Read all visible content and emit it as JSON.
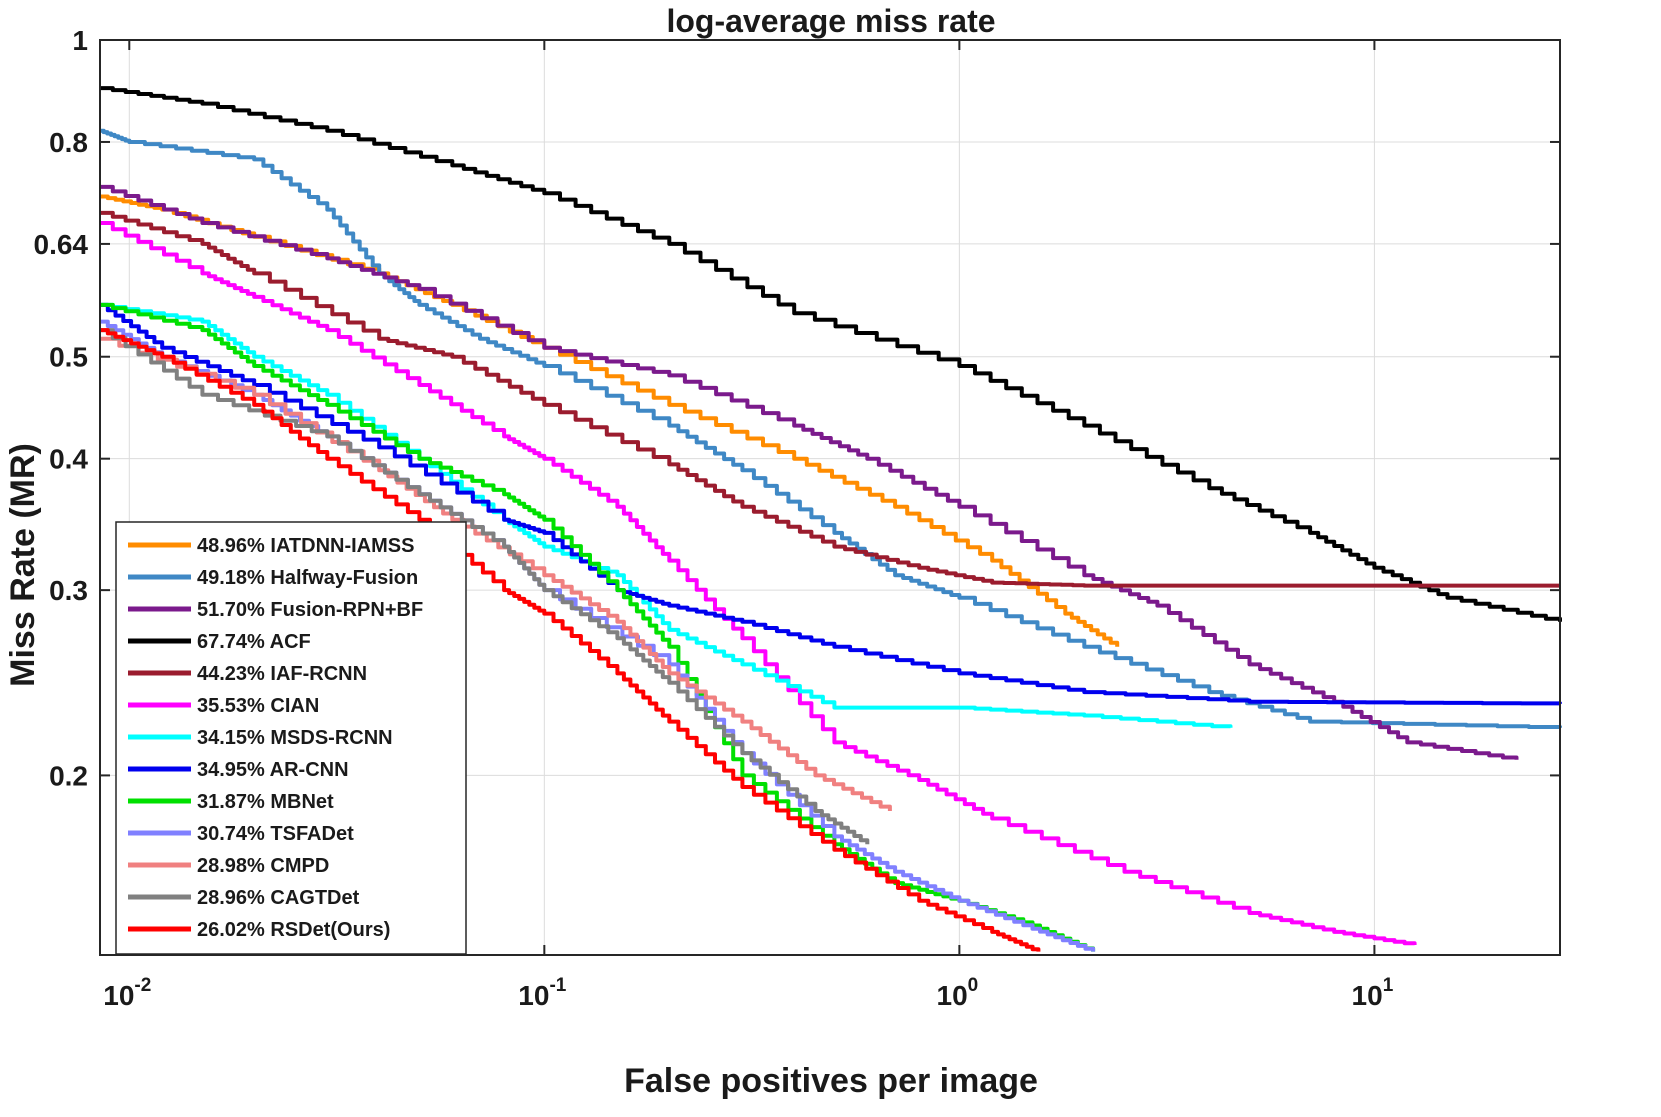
{
  "chart_data": {
    "type": "line",
    "title": "log-average miss rate",
    "xlabel": "False positives per image",
    "ylabel": "Miss Rate (MR)",
    "xscale": "log",
    "yscale": "log",
    "xlim": [
      0.0085,
      28
    ],
    "ylim": [
      0.135,
      1.0
    ],
    "x_ticks": [
      {
        "base": "10",
        "exp": "-2"
      },
      {
        "base": "10",
        "exp": "-1"
      },
      {
        "base": "10",
        "exp": "0"
      },
      {
        "base": "10",
        "exp": "1"
      }
    ],
    "x_tick_values": [
      0.01,
      0.1,
      1,
      10
    ],
    "y_ticks": [
      "1",
      "0.8",
      "0.64",
      "0.5",
      "0.4",
      "0.3",
      "0.2"
    ],
    "y_tick_values": [
      1,
      0.8,
      0.64,
      0.5,
      0.4,
      0.3,
      0.2
    ],
    "grid": true,
    "legend_position": "bottom-left",
    "series": [
      {
        "name": "48.96% IATDNN-IAMSS",
        "color": "#ff8c00",
        "points": [
          [
            0.0085,
            0.71
          ],
          [
            0.012,
            0.69
          ],
          [
            0.02,
            0.65
          ],
          [
            0.04,
            0.6
          ],
          [
            0.06,
            0.56
          ],
          [
            0.1,
            0.51
          ],
          [
            0.2,
            0.45
          ],
          [
            0.4,
            0.4
          ],
          [
            0.7,
            0.36
          ],
          [
            1.2,
            0.32
          ],
          [
            1.8,
            0.285
          ],
          [
            2.4,
            0.265
          ]
        ]
      },
      {
        "name": "49.18% Halfway-Fusion",
        "color": "#3f88c5",
        "points": [
          [
            0.0085,
            0.82
          ],
          [
            0.01,
            0.8
          ],
          [
            0.02,
            0.77
          ],
          [
            0.03,
            0.69
          ],
          [
            0.04,
            0.6
          ],
          [
            0.05,
            0.56
          ],
          [
            0.07,
            0.52
          ],
          [
            0.1,
            0.49
          ],
          [
            0.2,
            0.43
          ],
          [
            0.3,
            0.39
          ],
          [
            0.5,
            0.34
          ],
          [
            0.7,
            0.31
          ],
          [
            1.0,
            0.295
          ],
          [
            2.0,
            0.265
          ],
          [
            4.0,
            0.24
          ],
          [
            7.0,
            0.225
          ],
          [
            28,
            0.222
          ]
        ]
      },
      {
        "name": "51.70% Fusion-RPN+BF",
        "color": "#7b1a8c",
        "points": [
          [
            0.0085,
            0.725
          ],
          [
            0.015,
            0.67
          ],
          [
            0.03,
            0.62
          ],
          [
            0.05,
            0.58
          ],
          [
            0.1,
            0.51
          ],
          [
            0.2,
            0.48
          ],
          [
            0.4,
            0.43
          ],
          [
            0.6,
            0.4
          ],
          [
            1.0,
            0.36
          ],
          [
            2.0,
            0.31
          ],
          [
            3.0,
            0.29
          ],
          [
            5.0,
            0.255
          ],
          [
            8.0,
            0.235
          ],
          [
            12,
            0.215
          ],
          [
            22,
            0.207
          ]
        ]
      },
      {
        "name": "67.74% ACF",
        "color": "#000000",
        "points": [
          [
            0.0085,
            0.9
          ],
          [
            0.015,
            0.87
          ],
          [
            0.03,
            0.82
          ],
          [
            0.06,
            0.76
          ],
          [
            0.1,
            0.715
          ],
          [
            0.2,
            0.64
          ],
          [
            0.4,
            0.55
          ],
          [
            1.0,
            0.49
          ],
          [
            2.0,
            0.43
          ],
          [
            4.0,
            0.375
          ],
          [
            7.0,
            0.34
          ],
          [
            10.0,
            0.315
          ],
          [
            15,
            0.295
          ],
          [
            28,
            0.28
          ]
        ]
      },
      {
        "name": "44.23% IAF-RCNN",
        "color": "#9b1c2e",
        "points": [
          [
            0.0085,
            0.685
          ],
          [
            0.015,
            0.64
          ],
          [
            0.02,
            0.6
          ],
          [
            0.04,
            0.52
          ],
          [
            0.06,
            0.5
          ],
          [
            0.1,
            0.45
          ],
          [
            0.2,
            0.395
          ],
          [
            0.3,
            0.36
          ],
          [
            0.5,
            0.33
          ],
          [
            0.8,
            0.315
          ],
          [
            1.2,
            0.305
          ],
          [
            2.0,
            0.303
          ],
          [
            28,
            0.303
          ]
        ]
      },
      {
        "name": "35.53% CIAN",
        "color": "#ff00ff",
        "points": [
          [
            0.0085,
            0.67
          ],
          [
            0.015,
            0.6
          ],
          [
            0.02,
            0.57
          ],
          [
            0.03,
            0.53
          ],
          [
            0.05,
            0.47
          ],
          [
            0.08,
            0.42
          ],
          [
            0.1,
            0.4
          ],
          [
            0.15,
            0.36
          ],
          [
            0.2,
            0.32
          ],
          [
            0.3,
            0.27
          ],
          [
            0.5,
            0.215
          ],
          [
            0.8,
            0.198
          ],
          [
            1.2,
            0.182
          ],
          [
            2.5,
            0.162
          ],
          [
            5.0,
            0.148
          ],
          [
            8.0,
            0.142
          ],
          [
            12.5,
            0.138
          ]
        ]
      },
      {
        "name": "34.15% MSDS-RCNN",
        "color": "#00ffff",
        "points": [
          [
            0.0085,
            0.56
          ],
          [
            0.015,
            0.54
          ],
          [
            0.02,
            0.5
          ],
          [
            0.03,
            0.46
          ],
          [
            0.05,
            0.4
          ],
          [
            0.08,
            0.35
          ],
          [
            0.1,
            0.33
          ],
          [
            0.15,
            0.31
          ],
          [
            0.2,
            0.275
          ],
          [
            0.3,
            0.255
          ],
          [
            0.5,
            0.232
          ],
          [
            1.0,
            0.232
          ],
          [
            2.0,
            0.228
          ],
          [
            4.5,
            0.222
          ]
        ]
      },
      {
        "name": "34.95% AR-CNN",
        "color": "#0000ee",
        "points": [
          [
            0.0085,
            0.56
          ],
          [
            0.012,
            0.51
          ],
          [
            0.02,
            0.47
          ],
          [
            0.04,
            0.41
          ],
          [
            0.08,
            0.35
          ],
          [
            0.1,
            0.34
          ],
          [
            0.15,
            0.3
          ],
          [
            0.2,
            0.29
          ],
          [
            0.3,
            0.28
          ],
          [
            0.5,
            0.265
          ],
          [
            1.0,
            0.25
          ],
          [
            2.0,
            0.24
          ],
          [
            5.0,
            0.235
          ],
          [
            28,
            0.234
          ]
        ]
      },
      {
        "name": "31.87% MBNet",
        "color": "#00e000",
        "points": [
          [
            0.0085,
            0.56
          ],
          [
            0.015,
            0.53
          ],
          [
            0.02,
            0.49
          ],
          [
            0.03,
            0.45
          ],
          [
            0.05,
            0.4
          ],
          [
            0.08,
            0.37
          ],
          [
            0.1,
            0.35
          ],
          [
            0.15,
            0.3
          ],
          [
            0.2,
            0.265
          ],
          [
            0.3,
            0.2
          ],
          [
            0.5,
            0.172
          ],
          [
            0.7,
            0.158
          ],
          [
            1.0,
            0.152
          ],
          [
            1.5,
            0.144
          ],
          [
            2.1,
            0.136
          ]
        ]
      },
      {
        "name": "30.74% TSFADet",
        "color": "#8080ff",
        "points": [
          [
            0.0085,
            0.54
          ],
          [
            0.012,
            0.5
          ],
          [
            0.02,
            0.46
          ],
          [
            0.03,
            0.42
          ],
          [
            0.05,
            0.37
          ],
          [
            0.08,
            0.33
          ],
          [
            0.1,
            0.3
          ],
          [
            0.2,
            0.255
          ],
          [
            0.3,
            0.21
          ],
          [
            0.5,
            0.175
          ],
          [
            0.7,
            0.162
          ],
          [
            1.0,
            0.152
          ],
          [
            1.5,
            0.143
          ],
          [
            2.1,
            0.136
          ]
        ]
      },
      {
        "name": "28.98% CMPD",
        "color": "#f08080",
        "points": [
          [
            0.0085,
            0.52
          ],
          [
            0.02,
            0.46
          ],
          [
            0.04,
            0.39
          ],
          [
            0.06,
            0.35
          ],
          [
            0.1,
            0.31
          ],
          [
            0.15,
            0.28
          ],
          [
            0.2,
            0.25
          ],
          [
            0.3,
            0.225
          ],
          [
            0.45,
            0.2
          ],
          [
            0.68,
            0.185
          ]
        ]
      },
      {
        "name": "28.96% CAGTDet",
        "color": "#808080",
        "points": [
          [
            0.0085,
            0.53
          ],
          [
            0.015,
            0.46
          ],
          [
            0.03,
            0.42
          ],
          [
            0.05,
            0.37
          ],
          [
            0.08,
            0.33
          ],
          [
            0.1,
            0.3
          ],
          [
            0.15,
            0.27
          ],
          [
            0.2,
            0.245
          ],
          [
            0.3,
            0.21
          ],
          [
            0.45,
            0.185
          ],
          [
            0.6,
            0.172
          ]
        ]
      },
      {
        "name": "26.02% RSDet(Ours)",
        "color": "#ff0000",
        "points": [
          [
            0.0085,
            0.53
          ],
          [
            0.012,
            0.5
          ],
          [
            0.02,
            0.45
          ],
          [
            0.03,
            0.4
          ],
          [
            0.05,
            0.35
          ],
          [
            0.08,
            0.3
          ],
          [
            0.1,
            0.285
          ],
          [
            0.15,
            0.25
          ],
          [
            0.2,
            0.225
          ],
          [
            0.3,
            0.195
          ],
          [
            0.5,
            0.17
          ],
          [
            0.8,
            0.152
          ],
          [
            1.2,
            0.142
          ],
          [
            1.55,
            0.136
          ]
        ]
      }
    ]
  }
}
